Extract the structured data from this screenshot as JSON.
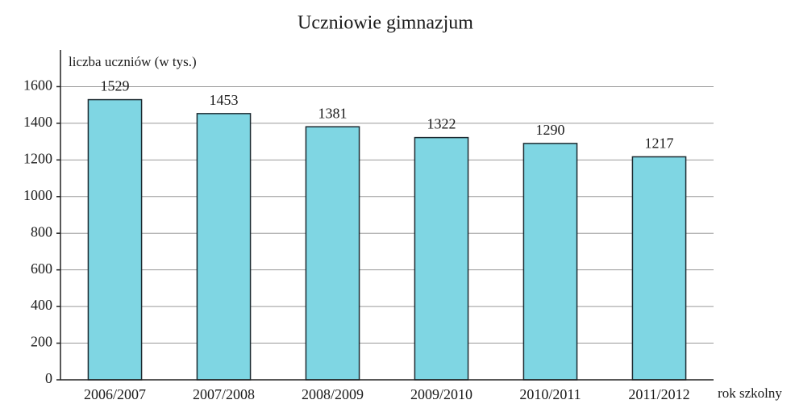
{
  "chart_data": {
    "type": "bar",
    "title": "Uczniowie gimnazjum",
    "y_label": "liczba uczniów (w tys.)",
    "x_label": "rok szkolny",
    "categories": [
      "2006/2007",
      "2007/2008",
      "2008/2009",
      "2009/2010",
      "2010/2011",
      "2011/2012"
    ],
    "values": [
      1529,
      1453,
      1381,
      1322,
      1290,
      1217
    ],
    "color": "#7fd6e3",
    "ylim": [
      0,
      1800
    ],
    "yticks": [
      0,
      200,
      400,
      600,
      800,
      1000,
      1200,
      1400,
      1600
    ],
    "grid": true
  }
}
